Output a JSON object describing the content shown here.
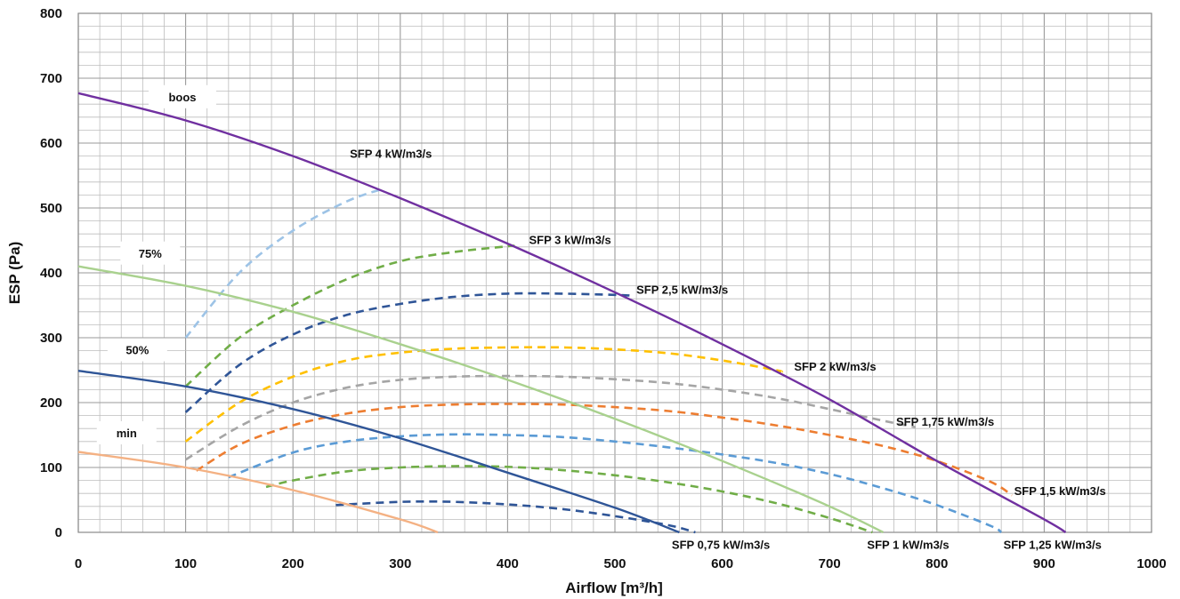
{
  "chart_data": {
    "type": "line",
    "title": "",
    "xlabel": "Airflow [m³/h]",
    "ylabel": "ESP (Pa)",
    "xlim": [
      0,
      1000
    ],
    "ylim": [
      0,
      800
    ],
    "x_ticks": [
      "0",
      "100",
      "200",
      "300",
      "400",
      "500",
      "600",
      "700",
      "800",
      "900",
      "1000"
    ],
    "y_ticks": [
      "0",
      "100",
      "200",
      "300",
      "400",
      "500",
      "600",
      "700",
      "800"
    ],
    "grid": true,
    "colors": {
      "boos": "#7030a0",
      "pct75": "#a9d18e",
      "pct50": "#2f5597",
      "min": "#f4b183",
      "sfp_4": "#9dc3e6",
      "sfp_3": "#70ad47",
      "sfp_2_5": "#2f5597",
      "sfp_2": "#ffc000",
      "sfp_1_75": "#a5a5a5",
      "sfp_1_5": "#ed7d31",
      "sfp_1_25": "#5b9bd5",
      "sfp_1": "#70ad47",
      "sfp_0_75": "#2f5597"
    },
    "fan_curves": [
      {
        "key": "boos",
        "label": "boos",
        "style": "solid",
        "x": [
          0,
          100,
          200,
          300,
          400,
          500,
          600,
          700,
          800,
          900,
          920
        ],
        "y": [
          677,
          635,
          580,
          515,
          445,
          370,
          290,
          205,
          110,
          20,
          0
        ]
      },
      {
        "key": "pct75",
        "label": "75%",
        "style": "solid",
        "x": [
          0,
          100,
          200,
          300,
          400,
          500,
          600,
          700,
          750
        ],
        "y": [
          410,
          380,
          340,
          290,
          235,
          175,
          110,
          40,
          0
        ]
      },
      {
        "key": "pct50",
        "label": "50%",
        "style": "solid",
        "x": [
          0,
          100,
          200,
          300,
          400,
          500,
          560
        ],
        "y": [
          249,
          225,
          190,
          145,
          92,
          38,
          0
        ]
      },
      {
        "key": "min",
        "label": "min",
        "style": "solid",
        "x": [
          0,
          100,
          200,
          300,
          335
        ],
        "y": [
          124,
          100,
          65,
          20,
          0
        ]
      }
    ],
    "sfp_curves": [
      {
        "key": "sfp_4",
        "label": "SFP 4 kW/m3/s",
        "x": [
          100,
          150,
          200,
          250,
          285
        ],
        "y": [
          300,
          400,
          465,
          510,
          530
        ]
      },
      {
        "key": "sfp_3",
        "label": "SFP 3 kW/m3/s",
        "x": [
          100,
          150,
          200,
          250,
          300,
          350,
          400,
          405
        ],
        "y": [
          225,
          300,
          350,
          390,
          418,
          432,
          441,
          442
        ]
      },
      {
        "key": "sfp_2_5",
        "label": "SFP 2,5 kW/m3/s",
        "x": [
          100,
          150,
          200,
          250,
          300,
          350,
          400,
          450,
          500,
          515
        ],
        "y": [
          185,
          258,
          305,
          335,
          352,
          363,
          368,
          368,
          366,
          365
        ]
      },
      {
        "key": "sfp_2",
        "label": "SFP 2 kW/m3/s",
        "x": [
          100,
          150,
          200,
          250,
          300,
          350,
          400,
          450,
          500,
          550,
          600,
          650,
          655
        ],
        "y": [
          140,
          200,
          240,
          265,
          277,
          283,
          285,
          285,
          282,
          276,
          265,
          250,
          247
        ]
      },
      {
        "key": "sfp_1_75",
        "label": "SFP 1,75 kW/m3/s",
        "x": [
          100,
          150,
          200,
          250,
          300,
          350,
          400,
          450,
          500,
          550,
          600,
          650,
          700,
          750,
          780
        ],
        "y": [
          112,
          163,
          200,
          223,
          235,
          240,
          241,
          240,
          236,
          230,
          220,
          207,
          190,
          172,
          162
        ]
      },
      {
        "key": "sfp_1_5",
        "label": "SFP 1,5 kW/m3/s",
        "x": [
          110,
          150,
          200,
          250,
          300,
          350,
          400,
          450,
          500,
          550,
          600,
          650,
          700,
          750,
          800,
          850,
          870
        ],
        "y": [
          95,
          135,
          165,
          183,
          193,
          197,
          198,
          197,
          193,
          187,
          177,
          165,
          150,
          133,
          110,
          78,
          57
        ]
      },
      {
        "key": "sfp_1_25",
        "label": "SFP 1,25 kW/m3/s",
        "x": [
          140,
          200,
          250,
          300,
          350,
          400,
          450,
          500,
          550,
          600,
          650,
          700,
          750,
          800,
          850,
          860
        ],
        "y": [
          85,
          123,
          140,
          148,
          151,
          150,
          147,
          140,
          131,
          120,
          107,
          90,
          68,
          42,
          10,
          0
        ]
      },
      {
        "key": "sfp_1",
        "label": "SFP 1 kW/m3/s",
        "x": [
          175,
          200,
          250,
          300,
          350,
          400,
          450,
          500,
          550,
          600,
          650,
          700,
          740
        ],
        "y": [
          70,
          80,
          94,
          100,
          102,
          101,
          96,
          88,
          77,
          63,
          45,
          22,
          0
        ]
      },
      {
        "key": "sfp_0_75",
        "label": "SFP 0,75 kW/m3/s",
        "x": [
          240,
          300,
          350,
          400,
          450,
          500,
          550,
          575
        ],
        "y": [
          42,
          47,
          47,
          43,
          36,
          25,
          11,
          0
        ]
      }
    ],
    "annotations": [
      {
        "text": "boos",
        "x": 97,
        "y": 666,
        "box": true
      },
      {
        "text": "75%",
        "x": 67,
        "y": 425,
        "box": true
      },
      {
        "text": "50%",
        "x": 55,
        "y": 276,
        "box": true
      },
      {
        "text": "min",
        "x": 45,
        "y": 148,
        "box": true
      },
      {
        "text": "SFP 4 kW/m3/s",
        "x": 253,
        "y": 583,
        "box": false
      },
      {
        "text": "SFP 3 kW/m3/s",
        "x": 420,
        "y": 450,
        "box": false
      },
      {
        "text": "SFP 2,5 kW/m3/s",
        "x": 520,
        "y": 373,
        "box": false
      },
      {
        "text": "SFP 2 kW/m3/s",
        "x": 667,
        "y": 255,
        "box": false
      },
      {
        "text": "SFP 1,75 kW/m3/s",
        "x": 762,
        "y": 170,
        "box": false
      },
      {
        "text": "SFP 1,5 kW/m3/s",
        "x": 872,
        "y": 63,
        "box": false
      },
      {
        "text": "SFP 0,75 kW/m3/s",
        "x": 553,
        "y": -20,
        "box": false
      },
      {
        "text": "SFP 1 kW/m3/s",
        "x": 735,
        "y": -20,
        "box": false
      },
      {
        "text": "SFP 1,25 kW/m3/s",
        "x": 862,
        "y": -20,
        "box": false
      }
    ]
  }
}
